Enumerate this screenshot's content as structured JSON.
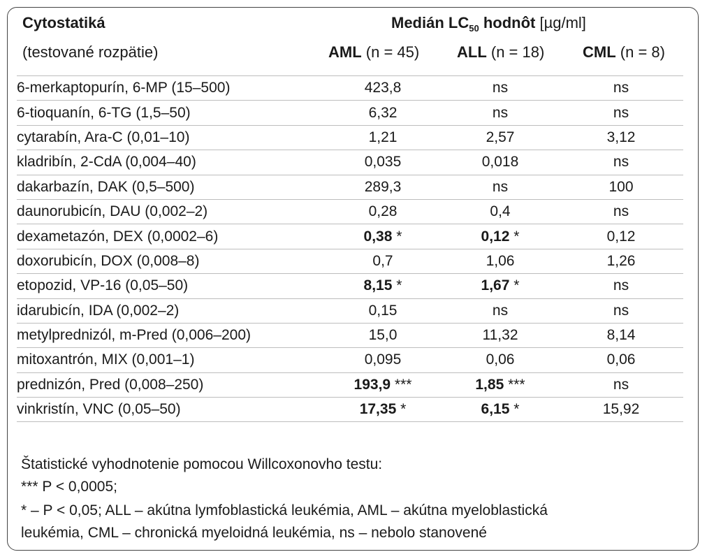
{
  "header": {
    "drug_col_title": "Cytostatiká",
    "drug_col_subtitle": "(testované rozpätie)",
    "median_prefix": "Medián LC",
    "median_sub": "50",
    "median_bold_suffix": " hodnôt",
    "median_unit": " [µg/ml]",
    "groups": [
      {
        "bold": "AML",
        "rest": " (n = 45)"
      },
      {
        "bold": "ALL",
        "rest": " (n = 18)"
      },
      {
        "bold": "CML",
        "rest": " (n = 8)"
      }
    ]
  },
  "rows": [
    {
      "drug": "6-merkaptopurín, 6-MP (15–500)",
      "aml": "423,8",
      "aml_sig": "",
      "aml_bold": false,
      "all": "ns",
      "all_sig": "",
      "all_bold": false,
      "cml": "ns"
    },
    {
      "drug": "6-tioquanín, 6-TG (1,5–50)",
      "aml": "6,32",
      "aml_sig": "",
      "aml_bold": false,
      "all": "ns",
      "all_sig": "",
      "all_bold": false,
      "cml": "ns"
    },
    {
      "drug": "cytarabín, Ara-C (0,01–10)",
      "aml": "1,21",
      "aml_sig": "",
      "aml_bold": false,
      "all": "2,57",
      "all_sig": "",
      "all_bold": false,
      "cml": "3,12"
    },
    {
      "drug": "kladribín, 2-CdA (0,004–40)",
      "aml": "0,035",
      "aml_sig": "",
      "aml_bold": false,
      "all": "0,018",
      "all_sig": "",
      "all_bold": false,
      "cml": "ns"
    },
    {
      "drug": "dakarbazín, DAK (0,5–500)",
      "aml": "289,3",
      "aml_sig": "",
      "aml_bold": false,
      "all": "ns",
      "all_sig": "",
      "all_bold": false,
      "cml": "100"
    },
    {
      "drug": "daunorubicín, DAU (0,002–2)",
      "aml": "0,28",
      "aml_sig": "",
      "aml_bold": false,
      "all": "0,4",
      "all_sig": "",
      "all_bold": false,
      "cml": "ns"
    },
    {
      "drug": "dexametazón, DEX (0,0002–6)",
      "aml": "0,38",
      "aml_sig": " *",
      "aml_bold": true,
      "all": "0,12",
      "all_sig": " *",
      "all_bold": true,
      "cml": "0,12"
    },
    {
      "drug": "doxorubicín, DOX (0,008–8)",
      "aml": "0,7",
      "aml_sig": "",
      "aml_bold": false,
      "all": "1,06",
      "all_sig": "",
      "all_bold": false,
      "cml": "1,26"
    },
    {
      "drug": "etopozid, VP-16 (0,05–50)",
      "aml": "8,15",
      "aml_sig": " *",
      "aml_bold": true,
      "all": "1,67",
      "all_sig": " *",
      "all_bold": true,
      "cml": "ns"
    },
    {
      "drug": "idarubicín, IDA (0,002–2)",
      "aml": "0,15",
      "aml_sig": "",
      "aml_bold": false,
      "all": "ns",
      "all_sig": "",
      "all_bold": false,
      "cml": "ns"
    },
    {
      "drug": "metylprednizól, m-Pred (0,006–200)",
      "aml": "15,0",
      "aml_sig": "",
      "aml_bold": false,
      "all": "11,32",
      "all_sig": "",
      "all_bold": false,
      "cml": "8,14"
    },
    {
      "drug": "mitoxantrón, MIX (0,001–1)",
      "aml": "0,095",
      "aml_sig": "",
      "aml_bold": false,
      "all": "0,06",
      "all_sig": "",
      "all_bold": false,
      "cml": "0,06"
    },
    {
      "drug": "prednizón, Pred (0,008–250)",
      "aml": "193,9",
      "aml_sig": " ***",
      "aml_bold": true,
      "all": "1,85",
      "all_sig": " ***",
      "all_bold": true,
      "cml": "ns"
    },
    {
      "drug": "vinkristín, VNC (0,05–50)",
      "aml": "17,35",
      "aml_sig": " *",
      "aml_bold": true,
      "all": "6,15",
      "all_sig": " *",
      "all_bold": true,
      "cml": "15,92"
    }
  ],
  "footnotes": [
    "Štatistické vyhodnotenie pomocou Willcoxonovho testu:",
    "*** P < 0,0005;",
    "* – P < 0,05; ALL – akútna lymfoblastická leukémia, AML – akútna myeloblastická",
    "leukémia, CML – chronická myeloidná leukémia, ns – nebolo stanovené"
  ]
}
